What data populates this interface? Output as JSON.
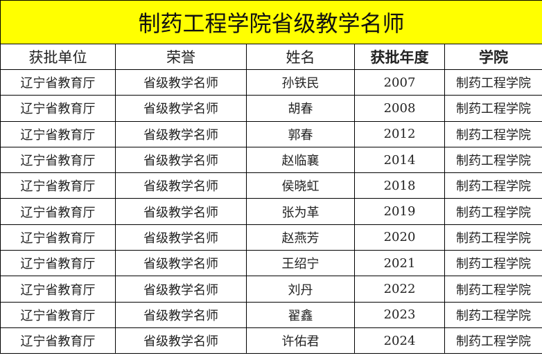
{
  "title": "制药工程学院省级教学名师",
  "headers": [
    "获批单位",
    "荣誉",
    "姓名",
    "获批年度",
    "学院"
  ],
  "rows": [
    [
      "辽宁省教育厅",
      "省级教学名师",
      "孙铁民",
      "2007",
      "制药工程学院"
    ],
    [
      "辽宁省教育厅",
      "省级教学名师",
      "胡春",
      "2008",
      "制药工程学院"
    ],
    [
      "辽宁省教育厅",
      "省级教学名师",
      "郭春",
      "2012",
      "制药工程学院"
    ],
    [
      "辽宁省教育厅",
      "省级教学名师",
      "赵临襄",
      "2014",
      "制药工程学院"
    ],
    [
      "辽宁省教育厅",
      "省级教学名师",
      "侯晓虹",
      "2018",
      "制药工程学院"
    ],
    [
      "辽宁省教育厅",
      "省级教学名师",
      "张为革",
      "2019",
      "制药工程学院"
    ],
    [
      "辽宁省教育厅",
      "省级教学名师",
      "赵燕芳",
      "2020",
      "制药工程学院"
    ],
    [
      "辽宁省教育厅",
      "省级教学名师",
      "王绍宁",
      "2021",
      "制药工程学院"
    ],
    [
      "辽宁省教育厅",
      "省级教学名师",
      "刘丹",
      "2022",
      "制药工程学院"
    ],
    [
      "辽宁省教育厅",
      "省级教学名师",
      "翟鑫",
      "2023",
      "制药工程学院"
    ],
    [
      "辽宁省教育厅",
      "省级教学名师",
      "许佑君",
      "2024",
      "制药工程学院"
    ]
  ],
  "colors": {
    "title_bg": "#ffff00"
  }
}
